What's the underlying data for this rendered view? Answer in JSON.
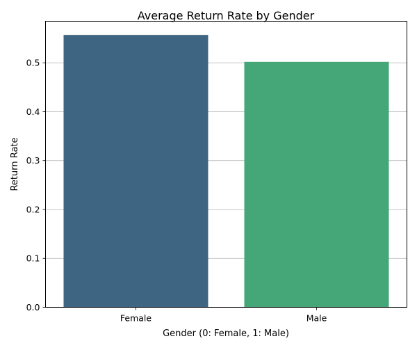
{
  "chart_data": {
    "type": "bar",
    "title": "Average Return Rate by Gender",
    "xlabel": "Gender (0: Female, 1: Male)",
    "ylabel": "Return Rate",
    "categories": [
      "Female",
      "Male"
    ],
    "values": [
      0.557,
      0.502
    ],
    "colors": [
      "#3e6582",
      "#45a778"
    ],
    "ylim": [
      0,
      0.585
    ],
    "yticks": [
      0.0,
      0.1,
      0.2,
      0.3,
      0.4,
      0.5
    ],
    "ytick_labels": [
      "0.0",
      "0.1",
      "0.2",
      "0.3",
      "0.4",
      "0.5"
    ],
    "grid": "y",
    "grid_color": "#b0b0b0",
    "legend": "none"
  }
}
